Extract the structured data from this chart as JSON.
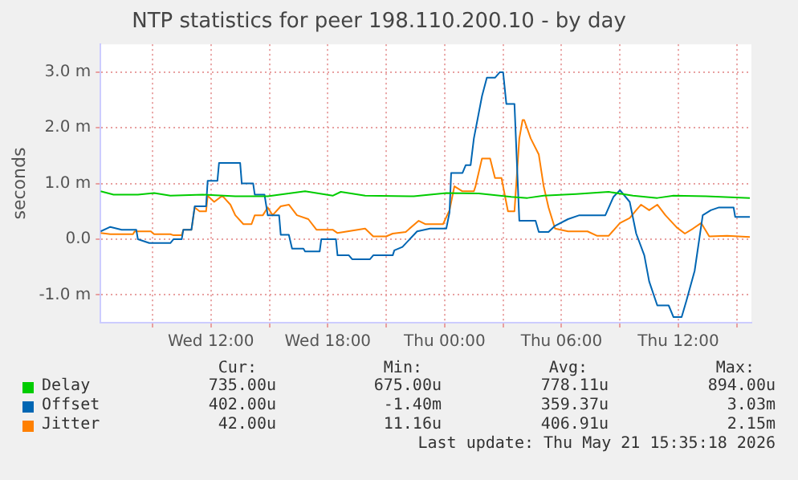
{
  "chart_data": {
    "type": "line",
    "title": "NTP statistics for peer 198.110.200.10 - by day",
    "ylabel": "seconds",
    "xlim": [
      "2026-05-20T06:20",
      "2026-05-21T15:45"
    ],
    "xticks": [
      {
        "value": "2026-05-20T09:00",
        "label": null
      },
      {
        "value": "2026-05-20T12:00",
        "label": "Wed 12:00"
      },
      {
        "value": "2026-05-20T15:00",
        "label": null
      },
      {
        "value": "2026-05-20T18:00",
        "label": "Wed 18:00"
      },
      {
        "value": "2026-05-20T21:00",
        "label": null
      },
      {
        "value": "2026-05-21T00:00",
        "label": "Thu 00:00"
      },
      {
        "value": "2026-05-21T03:00",
        "label": null
      },
      {
        "value": "2026-05-21T06:00",
        "label": "Thu 06:00"
      },
      {
        "value": "2026-05-21T09:00",
        "label": null
      },
      {
        "value": "2026-05-21T12:00",
        "label": "Thu 12:00"
      },
      {
        "value": "2026-05-21T15:00",
        "label": null
      }
    ],
    "ylim": [
      -1.5,
      3.5
    ],
    "yticks": [
      {
        "value": -1,
        "label": "-1.0 m"
      },
      {
        "value": 0,
        "label": "0.0"
      },
      {
        "value": 1,
        "label": "1.0 m"
      },
      {
        "value": 2,
        "label": "2.0 m"
      },
      {
        "value": 3,
        "label": "3.0 m"
      }
    ],
    "grid": true,
    "legend": "bottom",
    "marker": "none",
    "series": [
      {
        "name": "Delay",
        "color": "#00cc00",
        "x": [
          "2026-05-20T06:20",
          "2026-05-20T07:00",
          "2026-05-20T08:15",
          "2026-05-20T09:05",
          "2026-05-20T09:55",
          "2026-05-20T11:35",
          "2026-05-20T13:15",
          "2026-05-20T14:55",
          "2026-05-20T16:50",
          "2026-05-20T18:15",
          "2026-05-20T18:40",
          "2026-05-20T19:55",
          "2026-05-20T22:25",
          "2026-05-21T00:05",
          "2026-05-21T01:45",
          "2026-05-21T03:25",
          "2026-05-21T04:15",
          "2026-05-21T05:05",
          "2026-05-21T06:45",
          "2026-05-21T08:25",
          "2026-05-21T09:40",
          "2026-05-21T10:55",
          "2026-05-21T11:45",
          "2026-05-21T13:25",
          "2026-05-21T15:40"
        ],
        "values": [
          0.86,
          0.8,
          0.8,
          0.83,
          0.78,
          0.8,
          0.77,
          0.77,
          0.86,
          0.78,
          0.85,
          0.78,
          0.77,
          0.83,
          0.82,
          0.76,
          0.74,
          0.78,
          0.81,
          0.85,
          0.78,
          0.74,
          0.78,
          0.77,
          0.74
        ]
      },
      {
        "name": "Offset",
        "color": "#0066b3",
        "x": [
          "2026-05-20T06:20",
          "2026-05-20T06:50",
          "2026-05-20T07:25",
          "2026-05-20T08:10",
          "2026-05-20T08:15",
          "2026-05-20T08:50",
          "2026-05-20T09:55",
          "2026-05-20T10:05",
          "2026-05-20T10:30",
          "2026-05-20T10:35",
          "2026-05-20T11:00",
          "2026-05-20T11:10",
          "2026-05-20T11:45",
          "2026-05-20T11:50",
          "2026-05-20T12:20",
          "2026-05-20T12:25",
          "2026-05-20T13:30",
          "2026-05-20T13:35",
          "2026-05-20T14:10",
          "2026-05-20T14:15",
          "2026-05-20T14:45",
          "2026-05-20T14:55",
          "2026-05-20T15:30",
          "2026-05-20T15:35",
          "2026-05-20T16:00",
          "2026-05-20T16:10",
          "2026-05-20T16:45",
          "2026-05-20T16:50",
          "2026-05-20T17:35",
          "2026-05-20T17:40",
          "2026-05-20T18:25",
          "2026-05-20T18:30",
          "2026-05-20T19:05",
          "2026-05-20T19:15",
          "2026-05-20T20:10",
          "2026-05-20T20:20",
          "2026-05-20T21:20",
          "2026-05-20T21:25",
          "2026-05-20T21:50",
          "2026-05-20T22:35",
          "2026-05-20T23:15",
          "2026-05-21T00:05",
          "2026-05-21T00:15",
          "2026-05-21T00:20",
          "2026-05-21T00:55",
          "2026-05-21T01:05",
          "2026-05-21T01:20",
          "2026-05-21T01:30",
          "2026-05-21T01:55",
          "2026-05-21T02:10",
          "2026-05-21T02:35",
          "2026-05-21T02:50",
          "2026-05-21T03:00",
          "2026-05-21T03:10",
          "2026-05-21T03:35",
          "2026-05-21T03:50",
          "2026-05-21T04:40",
          "2026-05-21T04:50",
          "2026-05-21T05:20",
          "2026-05-21T05:40",
          "2026-05-21T06:20",
          "2026-05-21T06:55",
          "2026-05-21T08:15",
          "2026-05-21T08:40",
          "2026-05-21T09:00",
          "2026-05-21T09:30",
          "2026-05-21T09:50",
          "2026-05-21T10:15",
          "2026-05-21T10:30",
          "2026-05-21T10:55",
          "2026-05-21T11:30",
          "2026-05-21T11:45",
          "2026-05-21T12:10",
          "2026-05-21T12:25",
          "2026-05-21T12:50",
          "2026-05-21T13:15",
          "2026-05-21T13:40",
          "2026-05-21T14:05",
          "2026-05-21T14:50",
          "2026-05-21T14:55",
          "2026-05-21T15:40"
        ],
        "values": [
          0.14,
          0.22,
          0.17,
          0.17,
          0.0,
          -0.07,
          -0.07,
          0.0,
          0.0,
          0.17,
          0.17,
          0.59,
          0.59,
          1.05,
          1.05,
          1.37,
          1.37,
          1.0,
          1.0,
          0.8,
          0.8,
          0.43,
          0.43,
          0.08,
          0.08,
          -0.17,
          -0.17,
          -0.22,
          -0.22,
          0.0,
          0.0,
          -0.29,
          -0.29,
          -0.36,
          -0.36,
          -0.29,
          -0.29,
          -0.2,
          -0.14,
          0.14,
          0.19,
          0.19,
          0.48,
          1.19,
          1.19,
          1.33,
          1.33,
          1.81,
          2.57,
          2.9,
          2.9,
          3.0,
          3.0,
          2.43,
          2.43,
          0.33,
          0.33,
          0.13,
          0.13,
          0.24,
          0.36,
          0.43,
          0.43,
          0.76,
          0.88,
          0.67,
          0.1,
          -0.29,
          -0.76,
          -1.19,
          -1.19,
          -1.4,
          -1.4,
          -1.1,
          -0.57,
          0.43,
          0.52,
          0.57,
          0.57,
          0.4,
          0.4
        ]
      },
      {
        "name": "Jitter",
        "color": "#ff8000",
        "x": [
          "2026-05-20T06:20",
          "2026-05-20T06:50",
          "2026-05-20T08:00",
          "2026-05-20T08:05",
          "2026-05-20T08:55",
          "2026-05-20T09:05",
          "2026-05-20T09:55",
          "2026-05-20T10:05",
          "2026-05-20T10:30",
          "2026-05-20T10:35",
          "2026-05-20T11:00",
          "2026-05-20T11:10",
          "2026-05-20T11:25",
          "2026-05-20T11:45",
          "2026-05-20T11:50",
          "2026-05-20T12:10",
          "2026-05-20T12:35",
          "2026-05-20T13:00",
          "2026-05-20T13:15",
          "2026-05-20T13:40",
          "2026-05-20T14:05",
          "2026-05-20T14:15",
          "2026-05-20T14:40",
          "2026-05-20T14:55",
          "2026-05-20T15:10",
          "2026-05-20T15:35",
          "2026-05-20T16:00",
          "2026-05-20T16:25",
          "2026-05-20T17:00",
          "2026-05-20T17:25",
          "2026-05-20T18:15",
          "2026-05-20T18:30",
          "2026-05-20T19:55",
          "2026-05-20T20:20",
          "2026-05-20T21:00",
          "2026-05-20T21:20",
          "2026-05-20T22:00",
          "2026-05-20T22:40",
          "2026-05-20T23:00",
          "2026-05-20T23:55",
          "2026-05-21T00:15",
          "2026-05-21T00:30",
          "2026-05-21T00:55",
          "2026-05-21T01:30",
          "2026-05-21T01:35",
          "2026-05-21T01:55",
          "2026-05-21T02:20",
          "2026-05-21T02:35",
          "2026-05-21T02:55",
          "2026-05-21T03:15",
          "2026-05-21T03:35",
          "2026-05-21T03:50",
          "2026-05-21T04:00",
          "2026-05-21T04:05",
          "2026-05-21T04:25",
          "2026-05-21T04:50",
          "2026-05-21T05:05",
          "2026-05-21T05:20",
          "2026-05-21T05:40",
          "2026-05-21T06:20",
          "2026-05-21T07:20",
          "2026-05-21T07:50",
          "2026-05-21T08:25",
          "2026-05-21T09:00",
          "2026-05-21T09:30",
          "2026-05-21T09:50",
          "2026-05-21T10:05",
          "2026-05-21T10:30",
          "2026-05-21T10:55",
          "2026-05-21T11:20",
          "2026-05-21T11:55",
          "2026-05-21T12:20",
          "2026-05-21T12:45",
          "2026-05-21T13:10",
          "2026-05-21T13:35",
          "2026-05-21T14:30",
          "2026-05-21T15:05",
          "2026-05-21T15:40"
        ],
        "values": [
          0.11,
          0.09,
          0.09,
          0.14,
          0.14,
          0.09,
          0.09,
          0.07,
          0.07,
          0.17,
          0.17,
          0.57,
          0.5,
          0.5,
          0.78,
          0.67,
          0.78,
          0.62,
          0.43,
          0.27,
          0.27,
          0.43,
          0.43,
          0.57,
          0.43,
          0.59,
          0.62,
          0.43,
          0.36,
          0.17,
          0.17,
          0.11,
          0.19,
          0.05,
          0.05,
          0.1,
          0.13,
          0.33,
          0.27,
          0.27,
          0.52,
          0.95,
          0.86,
          0.86,
          0.95,
          1.45,
          1.45,
          1.1,
          1.1,
          0.5,
          0.5,
          1.81,
          2.14,
          2.14,
          1.81,
          1.52,
          0.95,
          0.57,
          0.19,
          0.14,
          0.14,
          0.06,
          0.06,
          0.29,
          0.38,
          0.52,
          0.62,
          0.52,
          0.62,
          0.43,
          0.21,
          0.1,
          0.19,
          0.29,
          0.05,
          0.06,
          0.05,
          0.04
        ]
      }
    ],
    "annotations": [
      "Cur:",
      "Min:",
      "Avg:",
      "Max:",
      "735.00u",
      "675.00u",
      "778.11u",
      "894.00u",
      "402.00u",
      "-1.40m",
      "359.37u",
      "3.03m",
      "42.00u",
      "11.16u",
      "406.91u",
      "2.15m",
      "Last update: Thu May 21 15:35:18 2026"
    ]
  }
}
